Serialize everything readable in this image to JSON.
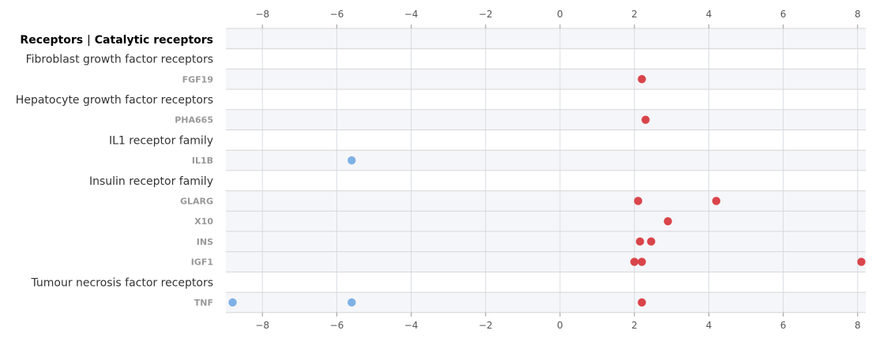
{
  "colors": {
    "positive": "#d9444a",
    "negative": "#7fb1e6",
    "band": "#f5f6f9",
    "grid": "#d8dce3",
    "separator": "#d6d6d6"
  },
  "chart_data": {
    "type": "scatter",
    "title": {
      "main": "Receptors",
      "sep": "|",
      "sub": "Catalytic receptors"
    },
    "xlim": [
      -9,
      8.2
    ],
    "xticks": [
      "-8",
      "-6",
      "-4",
      "-2",
      "0",
      "2",
      "4",
      "6",
      "8"
    ],
    "grid": true,
    "rows": [
      {
        "label": "Fibroblast growth factor receptors",
        "kind": "group",
        "points": []
      },
      {
        "label": "FGF19",
        "kind": "compound",
        "points": [
          2.2
        ]
      },
      {
        "label": "Hepatocyte growth factor receptors",
        "kind": "group",
        "points": []
      },
      {
        "label": "PHA665",
        "kind": "compound",
        "points": [
          2.3
        ]
      },
      {
        "label": "IL1 receptor family",
        "kind": "group",
        "points": []
      },
      {
        "label": "IL1B",
        "kind": "compound",
        "points": [
          -5.6
        ]
      },
      {
        "label": "Insulin receptor family",
        "kind": "group",
        "points": []
      },
      {
        "label": "GLARG",
        "kind": "compound",
        "points": [
          2.1,
          4.2
        ]
      },
      {
        "label": "X10",
        "kind": "compound",
        "points": [
          2.9
        ]
      },
      {
        "label": "INS",
        "kind": "compound",
        "points": [
          2.15,
          2.45
        ]
      },
      {
        "label": "IGF1",
        "kind": "compound",
        "points": [
          2.0,
          2.2,
          8.1
        ]
      },
      {
        "label": "Tumour necrosis factor receptors",
        "kind": "group",
        "points": []
      },
      {
        "label": "TNF",
        "kind": "compound",
        "points": [
          -8.8,
          -5.6,
          2.2
        ]
      }
    ]
  }
}
